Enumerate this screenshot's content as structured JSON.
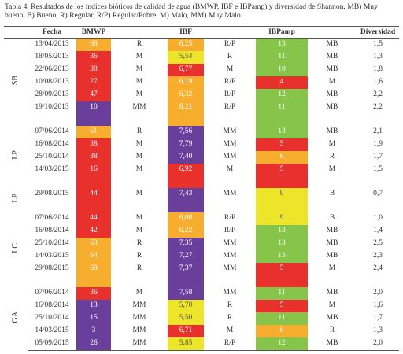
{
  "caption": "Tabla 4. Resultados de los índices bióticos de calidad de agua (BMWP, IBF e IBPamp) y diversidad de Shannon. MB) Muy bueno, B) Bueno, R) Regular, R/P) Regular/Pobre, M) Malo, MM) Muy Malo.",
  "table": {
    "headers": [
      "Fecha",
      "BMWP",
      "IBF",
      "IBPamp",
      "Diversidad"
    ],
    "groups": [
      {
        "label": "SB",
        "rows": [
          {
            "date": "13/04/2013",
            "bmwp": {
              "text": "68",
              "color": "#f7ae2f"
            },
            "bmwp_class": "R",
            "ibf": {
              "text": "6,25",
              "color": "#f7ae2f"
            },
            "ibf_class": "R/P",
            "ibp": {
              "text": "13",
              "color": "#86c44a"
            },
            "ibp_class": "MB",
            "diversity": "1,5"
          },
          {
            "date": "18/05/2013",
            "bmwp": {
              "text": "36",
              "color": "#e8302c"
            },
            "bmwp_class": "M",
            "ibf": {
              "text": "5,54",
              "color": "#ece52a"
            },
            "ibf_class": "R",
            "ibp": {
              "text": "11",
              "color": "#86c44a"
            },
            "ibp_class": "MB",
            "diversity": "1,3"
          },
          {
            "date": "22/06/2013",
            "bmwp": {
              "text": "38",
              "color": "#e8302c"
            },
            "bmwp_class": "M",
            "ibf": {
              "text": "6,77",
              "color": "#e8302c"
            },
            "ibf_class": "M",
            "ibp": {
              "text": "10",
              "color": "#86c44a"
            },
            "ibp_class": "MB",
            "diversity": "1,8"
          },
          {
            "date": "10/08/2013",
            "bmwp": {
              "text": "27",
              "color": "#e8302c"
            },
            "bmwp_class": "M",
            "ibf": {
              "text": "6,19",
              "color": "#f7ae2f"
            },
            "ibf_class": "R/P",
            "ibp": {
              "text": "4",
              "color": "#e8302c"
            },
            "ibp_class": "M",
            "diversity": "1,6"
          },
          {
            "date": "28/09/2013",
            "bmwp": {
              "text": "47",
              "color": "#e8302c"
            },
            "bmwp_class": "M",
            "ibf": {
              "text": "6,32",
              "color": "#f7ae2f"
            },
            "ibf_class": "R/P",
            "ibp": {
              "text": "12",
              "color": "#86c44a"
            },
            "ibp_class": "MB",
            "diversity": "2,2"
          },
          {
            "date": "19/10/2013",
            "bmwp": {
              "text": "10",
              "color": "#6a3f9c"
            },
            "bmwp_class": "MM",
            "ibf": {
              "text": "6,21",
              "color": "#f7ae2f"
            },
            "ibf_class": "R/P",
            "ibp": {
              "text": "11",
              "color": "#86c44a"
            },
            "ibp_class": "MB",
            "diversity": "2,2"
          }
        ]
      },
      {
        "label": "LP",
        "rows": [
          {
            "date": "07/06/2014",
            "bmwp": {
              "text": "61",
              "color": "#f7ae2f"
            },
            "bmwp_class": "R",
            "ibf": {
              "text": "7,56",
              "color": "#6a3f9c"
            },
            "ibf_class": "MM",
            "ibp": {
              "text": "13",
              "color": "#86c44a"
            },
            "ibp_class": "MB",
            "diversity": "2,1"
          },
          {
            "date": "16/08/2014",
            "bmwp": {
              "text": "38",
              "color": "#e8302c"
            },
            "bmwp_class": "M",
            "ibf": {
              "text": "7,79",
              "color": "#6a3f9c"
            },
            "ibf_class": "MM",
            "ibp": {
              "text": "5",
              "color": "#e8302c"
            },
            "ibp_class": "M",
            "diversity": "1,9"
          },
          {
            "date": "25/10/2014",
            "bmwp": {
              "text": "38",
              "color": "#e8302c"
            },
            "bmwp_class": "M",
            "ibf": {
              "text": "7,40",
              "color": "#6a3f9c"
            },
            "ibf_class": "MM",
            "ibp": {
              "text": "6",
              "color": "#f7ae2f"
            },
            "ibp_class": "R",
            "diversity": "1,7"
          },
          {
            "date": "14/03/2015",
            "bmwp": {
              "text": "16",
              "color": "#e8302c"
            },
            "bmwp_class": "M",
            "ibf": {
              "text": "6,92",
              "color": "#e8302c"
            },
            "ibf_class": "M",
            "ibp": {
              "text": "5",
              "color": "#e8302c"
            },
            "ibp_class": "M",
            "diversity": "1,5"
          }
        ]
      },
      {
        "label": "LP",
        "rows": [
          {
            "date": "29/08/2015",
            "bmwp": {
              "text": "44",
              "color": "#e8302c"
            },
            "bmwp_class": "M",
            "ibf": {
              "text": "7,43",
              "color": "#6a3f9c"
            },
            "ibf_class": "MM",
            "ibp": {
              "text": "9",
              "color": "#ece52a"
            },
            "ibp_class": "B",
            "diversity": "0,7"
          }
        ]
      },
      {
        "label": "LC",
        "rows": [
          {
            "date": "07/06/2014",
            "bmwp": {
              "text": "44",
              "color": "#e8302c"
            },
            "bmwp_class": "M",
            "ibf": {
              "text": "6,08",
              "color": "#f7ae2f"
            },
            "ibf_class": "R/P",
            "ibp": {
              "text": "9",
              "color": "#ece52a"
            },
            "ibp_class": "B",
            "diversity": "1,0"
          },
          {
            "date": "16/08/2014",
            "bmwp": {
              "text": "42",
              "color": "#e8302c"
            },
            "bmwp_class": "M",
            "ibf": {
              "text": "6,22",
              "color": "#f7ae2f"
            },
            "ibf_class": "R/P",
            "ibp": {
              "text": "13",
              "color": "#86c44a"
            },
            "ibp_class": "MB",
            "diversity": "1,4"
          },
          {
            "date": "25/10/2014",
            "bmwp": {
              "text": "63",
              "color": "#f7ae2f"
            },
            "bmwp_class": "R",
            "ibf": {
              "text": "7,35",
              "color": "#6a3f9c"
            },
            "ibf_class": "MM",
            "ibp": {
              "text": "13",
              "color": "#86c44a"
            },
            "ibp_class": "MB",
            "diversity": "2,5"
          },
          {
            "date": "14/03/2015",
            "bmwp": {
              "text": "64",
              "color": "#f7ae2f"
            },
            "bmwp_class": "R",
            "ibf": {
              "text": "7,27",
              "color": "#6a3f9c"
            },
            "ibf_class": "MM",
            "ibp": {
              "text": "13",
              "color": "#86c44a"
            },
            "ibp_class": "MB",
            "diversity": "2,3"
          },
          {
            "date": "29/08/2015",
            "bmwp": {
              "text": "68",
              "color": "#f7ae2f"
            },
            "bmwp_class": "R",
            "ibf": {
              "text": "7,37",
              "color": "#6a3f9c"
            },
            "ibf_class": "MM",
            "ibp": {
              "text": "5",
              "color": "#e8302c"
            },
            "ibp_class": "M",
            "diversity": "2,4"
          }
        ]
      },
      {
        "label": "GA",
        "rows": [
          {
            "date": "07/06/2014",
            "bmwp": {
              "text": "36",
              "color": "#e8302c"
            },
            "bmwp_class": "M",
            "ibf": {
              "text": "7,58",
              "color": "#6a3f9c"
            },
            "ibf_class": "MM",
            "ibp": {
              "text": "11",
              "color": "#86c44a"
            },
            "ibp_class": "MB",
            "diversity": "2,0"
          },
          {
            "date": "16/08/2014",
            "bmwp": {
              "text": "13",
              "color": "#6a3f9c"
            },
            "bmwp_class": "MM",
            "ibf": {
              "text": "5,70",
              "color": "#ece52a"
            },
            "ibf_class": "R",
            "ibp": {
              "text": "5",
              "color": "#e8302c"
            },
            "ibp_class": "M",
            "diversity": "1,6"
          },
          {
            "date": "25/10/2014",
            "bmwp": {
              "text": "15",
              "color": "#6a3f9c"
            },
            "bmwp_class": "MM",
            "ibf": {
              "text": "5,50",
              "color": "#ece52a"
            },
            "ibf_class": "R",
            "ibp": {
              "text": "11",
              "color": "#86c44a"
            },
            "ibp_class": "MB",
            "diversity": "1,7"
          },
          {
            "date": "14/03/2015",
            "bmwp": {
              "text": "3",
              "color": "#6a3f9c"
            },
            "bmwp_class": "MM",
            "ibf": {
              "text": "6,71",
              "color": "#e8302c"
            },
            "ibf_class": "M",
            "ibp": {
              "text": "6",
              "color": "#f7ae2f"
            },
            "ibp_class": "R",
            "diversity": "1,3"
          },
          {
            "date": "05/09/2015",
            "bmwp": {
              "text": "26",
              "color": "#6a3f9c"
            },
            "bmwp_class": "MM",
            "ibf": {
              "text": "5,85",
              "color": "#ece52a"
            },
            "ibf_class": "R/P",
            "ibp": {
              "text": "12",
              "color": "#86c44a"
            },
            "ibp_class": "MB",
            "diversity": "2,0"
          }
        ]
      }
    ]
  }
}
